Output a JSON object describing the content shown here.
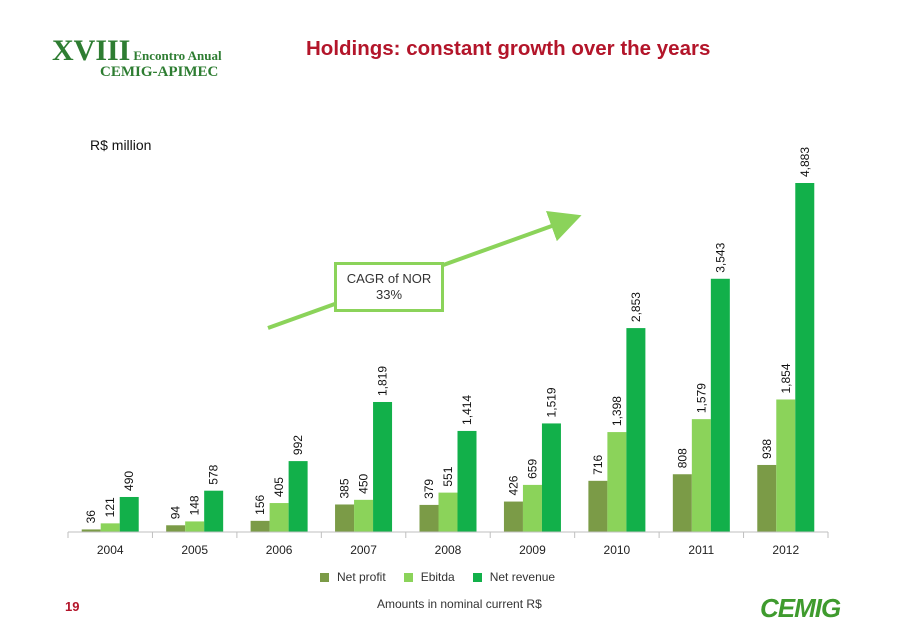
{
  "header": {
    "logo_line1_roman": "XVIII",
    "logo_line1_text": "Encontro Anual",
    "logo_line2": "CEMIG-APIMEC",
    "title": "Holdings: constant growth over the years"
  },
  "unit_label": "R$ million",
  "callout": {
    "line1": "CAGR of NOR",
    "line2": "33%"
  },
  "footer": {
    "page_number": "19",
    "note": "Amounts in nominal current R$",
    "brand": "CEMIG"
  },
  "colors": {
    "net_profit": "#7b9b47",
    "ebitda": "#8bd35a",
    "net_revenue": "#12b04a",
    "title": "#b3152a"
  },
  "chart_data": {
    "type": "bar",
    "categories": [
      "2004",
      "2005",
      "2006",
      "2007",
      "2008",
      "2009",
      "2010",
      "2011",
      "2012"
    ],
    "series": [
      {
        "name": "Net profit",
        "values": [
          36,
          94,
          156,
          385,
          379,
          426,
          716,
          808,
          938
        ],
        "labels": [
          "36",
          "94",
          "156",
          "385",
          "379",
          "426",
          "716",
          "808",
          "938"
        ]
      },
      {
        "name": "Ebitda",
        "values": [
          121,
          148,
          405,
          450,
          551,
          659,
          1398,
          1579,
          1854
        ],
        "labels": [
          "121",
          "148",
          "405",
          "450",
          "551",
          "659",
          "1,398",
          "1,579",
          "1,854"
        ]
      },
      {
        "name": "Net revenue",
        "values": [
          490,
          578,
          992,
          1819,
          1414,
          1519,
          2853,
          3543,
          4883
        ],
        "labels": [
          "490",
          "578",
          "992",
          "1,819",
          "1,414",
          "1,519",
          "2,853",
          "3,543",
          "4,883"
        ]
      }
    ],
    "ylim": [
      0,
      4883
    ],
    "legend_position": "bottom",
    "grid": false
  }
}
